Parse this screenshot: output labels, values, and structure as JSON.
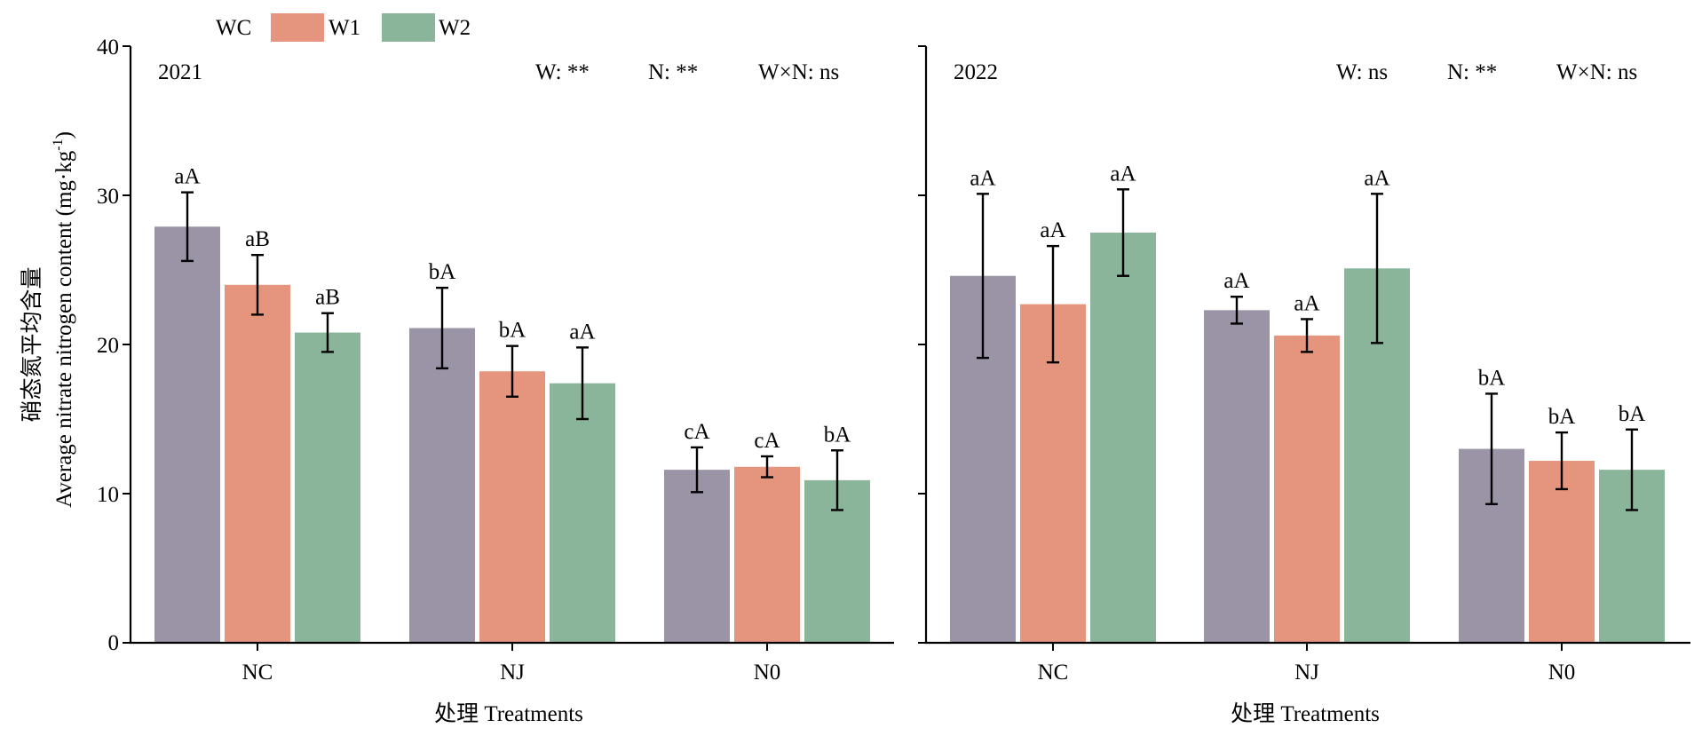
{
  "legend": {
    "items": [
      {
        "label": "WC",
        "color": "#9b93a6"
      },
      {
        "label": "W1",
        "color": "#e5957e"
      },
      {
        "label": "W2",
        "color": "#8bb59a"
      }
    ]
  },
  "y_axis": {
    "label_cn": "硝态氮平均含量",
    "label_en_main": "Average nitrate nitrogen content (mg·kg",
    "label_en_sup": "-1",
    "label_en_close": ")",
    "ticks": [
      "0",
      "10",
      "20",
      "30",
      "40"
    ]
  },
  "x_axis_label": "处理 Treatments",
  "chart_data": [
    {
      "type": "bar",
      "title": "2021",
      "annotations": [
        "W: **",
        "N: **",
        "W×N: ns"
      ],
      "xlabel": "处理 Treatments",
      "ylabel": "硝态氮平均含量 Average nitrate nitrogen content (mg·kg-1)",
      "ylim": [
        0,
        40
      ],
      "categories": [
        "NC",
        "NJ",
        "N0"
      ],
      "series": [
        {
          "name": "WC",
          "values": [
            27.9,
            21.1,
            11.6
          ],
          "errors": [
            2.3,
            2.7,
            1.5
          ],
          "letters": [
            "aA",
            "bA",
            "cA"
          ]
        },
        {
          "name": "W1",
          "values": [
            24.0,
            18.2,
            11.8
          ],
          "errors": [
            2.0,
            1.7,
            0.7
          ],
          "letters": [
            "aB",
            "bA",
            "cA"
          ]
        },
        {
          "name": "W2",
          "values": [
            20.8,
            17.4,
            10.9
          ],
          "errors": [
            1.3,
            2.4,
            2.0
          ],
          "letters": [
            "aB",
            "aA",
            "bA"
          ]
        }
      ]
    },
    {
      "type": "bar",
      "title": "2022",
      "annotations": [
        "W: ns",
        "N: **",
        "W×N: ns"
      ],
      "xlabel": "处理 Treatments",
      "ylabel": "",
      "ylim": [
        0,
        40
      ],
      "categories": [
        "NC",
        "NJ",
        "N0"
      ],
      "series": [
        {
          "name": "WC",
          "values": [
            24.6,
            22.3,
            13.0
          ],
          "errors": [
            5.5,
            0.9,
            3.7
          ],
          "letters": [
            "aA",
            "aA",
            "bA"
          ]
        },
        {
          "name": "W1",
          "values": [
            22.7,
            20.6,
            12.2
          ],
          "errors": [
            3.9,
            1.1,
            1.9
          ],
          "letters": [
            "aA",
            "aA",
            "bA"
          ]
        },
        {
          "name": "W2",
          "values": [
            27.5,
            25.1,
            11.6
          ],
          "errors": [
            2.9,
            5.0,
            2.7
          ],
          "letters": [
            "aA",
            "aA",
            "bA"
          ]
        }
      ]
    }
  ]
}
